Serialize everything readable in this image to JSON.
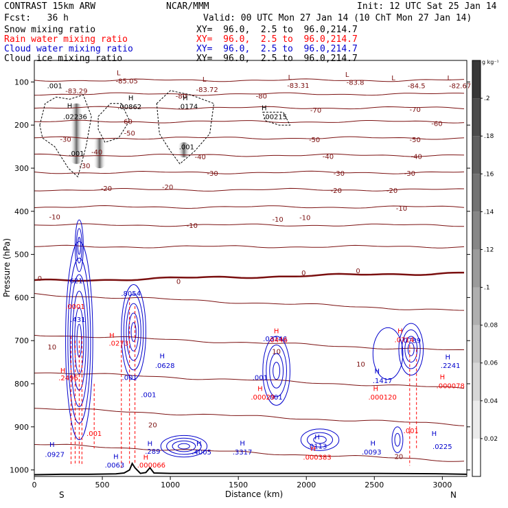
{
  "header": {
    "model": "CONTRAST 15km ARW",
    "org": "NCAR/MMM",
    "init": "Init: 12 UTC Sat 25 Jan 14",
    "fcst": "Fcst:   36 h",
    "valid": "Valid: 00 UTC Mon 27 Jan 14 (10 ChT Mon 27 Jan 14)",
    "fields": [
      {
        "label": "Snow mixing ratio",
        "xy": "",
        "color": "#000000"
      },
      {
        "label": "Rain water mixing ratio",
        "xy": "XY=  96.0,  2.5 to  96.0,214.7",
        "color": "#ff0000"
      },
      {
        "label": "Cloud water mixing ratio",
        "xy": "XY=  96.0,  2.5 to  96.0,214.7",
        "color": "#0000cc"
      },
      {
        "label": "Cloud ice mixing ratio",
        "xy": "XY=  96.0,  2.5 to  96.0,214.7",
        "color": "#000000"
      }
    ],
    "snow_xy": "XY=  96.0,  2.5 to  96.0,214.7"
  },
  "chart_data": {
    "type": "cross-section",
    "ylabel": "Pressure (hPa)",
    "xlabel": "Distance (km)",
    "x_left_label": "S",
    "x_right_label": "N",
    "xlim": [
      0,
      3180
    ],
    "ylim": [
      50,
      1015
    ],
    "x_ticks": [
      0,
      500,
      1000,
      1500,
      2000,
      2500,
      3000
    ],
    "y_ticks": [
      100,
      200,
      300,
      400,
      500,
      600,
      700,
      800,
      900,
      1000
    ],
    "colorbar": {
      "unit": "g kg⁻¹",
      "ticks": [
        "0.02",
        "0.04",
        "0.06",
        "0.08",
        ".1",
        ".12",
        ".14",
        ".16",
        ".18",
        ".2"
      ],
      "tick_values": [
        0.02,
        0.04,
        0.06,
        0.08,
        0.1,
        0.12,
        0.14,
        0.16,
        0.18,
        0.2
      ],
      "max": 0.22
    },
    "temperature_labels": [
      {
        "x": 230,
        "p": 232,
        "text": "-30"
      },
      {
        "x": 1080,
        "p": 132,
        "text": "-80"
      },
      {
        "x": 680,
        "p": 191,
        "text": "-60"
      },
      {
        "x": 700,
        "p": 218,
        "text": "-50"
      },
      {
        "x": 460,
        "p": 262,
        "text": "-40"
      },
      {
        "x": 530,
        "p": 346,
        "text": "-20"
      },
      {
        "x": 150,
        "p": 412,
        "text": "-10"
      },
      {
        "x": 1160,
        "p": 432,
        "text": "-10"
      },
      {
        "x": 1790,
        "p": 418,
        "text": "-10"
      },
      {
        "x": 2700,
        "p": 392,
        "text": "-10"
      },
      {
        "x": 1670,
        "p": 132,
        "text": "-80"
      },
      {
        "x": 2070,
        "p": 165,
        "text": "-70"
      },
      {
        "x": 2800,
        "p": 163,
        "text": "-70"
      },
      {
        "x": 2960,
        "p": 196,
        "text": "-60"
      },
      {
        "x": 2060,
        "p": 233,
        "text": "-50"
      },
      {
        "x": 2800,
        "p": 233,
        "text": "-50"
      },
      {
        "x": 2160,
        "p": 272,
        "text": "-40"
      },
      {
        "x": 2810,
        "p": 272,
        "text": "-40"
      },
      {
        "x": 2240,
        "p": 311,
        "text": "-30"
      },
      {
        "x": 2760,
        "p": 311,
        "text": "-30"
      },
      {
        "x": 2220,
        "p": 351,
        "text": "-20"
      },
      {
        "x": 2630,
        "p": 351,
        "text": "-20"
      },
      {
        "x": 1990,
        "p": 414,
        "text": "-10"
      },
      {
        "x": 1980,
        "p": 542,
        "text": "0"
      },
      {
        "x": 2380,
        "p": 537,
        "text": "0"
      },
      {
        "x": 1060,
        "p": 562,
        "text": "0"
      },
      {
        "x": 40,
        "p": 555,
        "text": "0"
      },
      {
        "x": 130,
        "p": 714,
        "text": "10"
      },
      {
        "x": 1780,
        "p": 724,
        "text": "10"
      },
      {
        "x": 2400,
        "p": 754,
        "text": "10"
      },
      {
        "x": 870,
        "p": 895,
        "text": "20"
      },
      {
        "x": 2680,
        "p": 968,
        "text": "20"
      },
      {
        "x": 370,
        "p": 294,
        "text": "-30"
      },
      {
        "x": 980,
        "p": 343,
        "text": "-20"
      },
      {
        "x": 1220,
        "p": 273,
        "text": "-40"
      },
      {
        "x": 1310,
        "p": 311,
        "text": "-30"
      }
    ],
    "isotherm_pressures": [
      96,
      128,
      160,
      192,
      230,
      270,
      310,
      350,
      390,
      432,
      482,
      552,
      612,
      705,
      792,
      876,
      960
    ],
    "zero_isotherm_index": 11,
    "min_labels": [
      {
        "x": 680,
        "p": 97,
        "text": "-85.05"
      },
      {
        "x": 1270,
        "p": 117,
        "text": "-83.72"
      },
      {
        "x": 1940,
        "p": 107,
        "text": "-83.31"
      },
      {
        "x": 2360,
        "p": 100,
        "text": "-83.8"
      },
      {
        "x": 2810,
        "p": 108,
        "text": "-84.5"
      },
      {
        "x": 3130,
        "p": 108,
        "text": "-82.67"
      },
      {
        "x": 310,
        "p": 120,
        "text": "-83.29"
      }
    ],
    "lows": [
      {
        "x": 620,
        "p": 78
      },
      {
        "x": 1250,
        "p": 93
      },
      {
        "x": 1880,
        "p": 88
      },
      {
        "x": 2300,
        "p": 82
      },
      {
        "x": 2640,
        "p": 90
      },
      {
        "x": 3050,
        "p": 90
      }
    ],
    "ice_labels": [
      {
        "x": 260,
        "p": 154,
        "text": "H"
      },
      {
        "x": 300,
        "p": 180,
        "text": ".02236"
      },
      {
        "x": 710,
        "p": 136,
        "text": "H"
      },
      {
        "x": 700,
        "p": 157,
        "text": ".00862"
      },
      {
        "x": 1110,
        "p": 136,
        "text": "H"
      },
      {
        "x": 1130,
        "p": 156,
        "text": ".0174"
      },
      {
        "x": 1690,
        "p": 159,
        "text": "H"
      },
      {
        "x": 1770,
        "p": 180,
        "text": ".00215"
      },
      {
        "x": 310,
        "p": 265,
        "text": ".001"
      },
      {
        "x": 1120,
        "p": 250,
        "text": ".001"
      },
      {
        "x": 150,
        "p": 108,
        "text": ".001"
      }
    ],
    "cloud_water_labels": [
      {
        "x": 300,
        "p": 560,
        "text": ".621"
      },
      {
        "x": 320,
        "p": 650,
        "text": ".431"
      },
      {
        "x": 710,
        "p": 590,
        "text": ".8054"
      },
      {
        "x": 940,
        "p": 735,
        "text": "H"
      },
      {
        "x": 960,
        "p": 757,
        "text": ".0628"
      },
      {
        "x": 700,
        "p": 785,
        "text": ".001"
      },
      {
        "x": 840,
        "p": 825,
        "text": ".001"
      },
      {
        "x": 1660,
        "p": 785,
        "text": ".001"
      },
      {
        "x": 1770,
        "p": 830,
        "text": ".001"
      },
      {
        "x": 2520,
        "p": 770,
        "text": "H"
      },
      {
        "x": 2560,
        "p": 792,
        "text": ".1417"
      },
      {
        "x": 3040,
        "p": 737,
        "text": "H"
      },
      {
        "x": 3060,
        "p": 757,
        "text": ".2241"
      },
      {
        "x": 130,
        "p": 940,
        "text": "H"
      },
      {
        "x": 150,
        "p": 963,
        "text": ".0927"
      },
      {
        "x": 600,
        "p": 968,
        "text": "H"
      },
      {
        "x": 590,
        "p": 988,
        "text": ".0063"
      },
      {
        "x": 850,
        "p": 938,
        "text": "H"
      },
      {
        "x": 870,
        "p": 956,
        "text": ".289"
      },
      {
        "x": 1210,
        "p": 938,
        "text": "H"
      },
      {
        "x": 1230,
        "p": 958,
        "text": ".4005"
      },
      {
        "x": 1530,
        "p": 937,
        "text": "H"
      },
      {
        "x": 1530,
        "p": 958,
        "text": ".3317"
      },
      {
        "x": 2080,
        "p": 923,
        "text": "H"
      },
      {
        "x": 2080,
        "p": 944,
        "text": ".0113"
      },
      {
        "x": 2490,
        "p": 937,
        "text": "H"
      },
      {
        "x": 2480,
        "p": 958,
        "text": ".0093"
      },
      {
        "x": 2940,
        "p": 915,
        "text": "H"
      },
      {
        "x": 3000,
        "p": 945,
        "text": ".0225"
      },
      {
        "x": 1770,
        "p": 695,
        "text": ".03146"
      },
      {
        "x": 2770,
        "p": 699,
        "text": ".0789"
      }
    ],
    "rain_labels": [
      {
        "x": 210,
        "p": 768,
        "text": "H"
      },
      {
        "x": 250,
        "p": 786,
        "text": ".2496"
      },
      {
        "x": 300,
        "p": 620,
        "text": ".0001"
      },
      {
        "x": 570,
        "p": 687,
        "text": "H"
      },
      {
        "x": 620,
        "p": 705,
        "text": ".0273"
      },
      {
        "x": 440,
        "p": 915,
        "text": ".001"
      },
      {
        "x": 820,
        "p": 970,
        "text": "H"
      },
      {
        "x": 860,
        "p": 988,
        "text": ".000066"
      },
      {
        "x": 1660,
        "p": 810,
        "text": "H"
      },
      {
        "x": 1680,
        "p": 830,
        "text": ".00029"
      },
      {
        "x": 1780,
        "p": 677,
        "text": "H"
      },
      {
        "x": 1790,
        "p": 697,
        "text": ".0446"
      },
      {
        "x": 2510,
        "p": 810,
        "text": "H"
      },
      {
        "x": 2560,
        "p": 830,
        "text": ".000120"
      },
      {
        "x": 2690,
        "p": 677,
        "text": "H"
      },
      {
        "x": 2720,
        "p": 697,
        "text": ".0714"
      },
      {
        "x": 2770,
        "p": 908,
        "text": ".001"
      },
      {
        "x": 3000,
        "p": 783,
        "text": "H"
      },
      {
        "x": 3060,
        "p": 804,
        "text": ".000078"
      },
      {
        "x": 2050,
        "p": 950,
        "text": "H"
      },
      {
        "x": 2080,
        "p": 970,
        "text": ".000383"
      }
    ],
    "surface_profile": [
      [
        0,
        1011
      ],
      [
        200,
        1010
      ],
      [
        400,
        1010
      ],
      [
        600,
        1009
      ],
      [
        660,
        1007
      ],
      [
        700,
        1000
      ],
      [
        720,
        985
      ],
      [
        740,
        995
      ],
      [
        780,
        1008
      ],
      [
        820,
        1006
      ],
      [
        850,
        995
      ],
      [
        880,
        1007
      ],
      [
        1000,
        1008
      ],
      [
        1500,
        1008
      ],
      [
        2000,
        1008
      ],
      [
        2500,
        1008
      ],
      [
        3000,
        1009
      ],
      [
        3180,
        1010
      ]
    ]
  }
}
